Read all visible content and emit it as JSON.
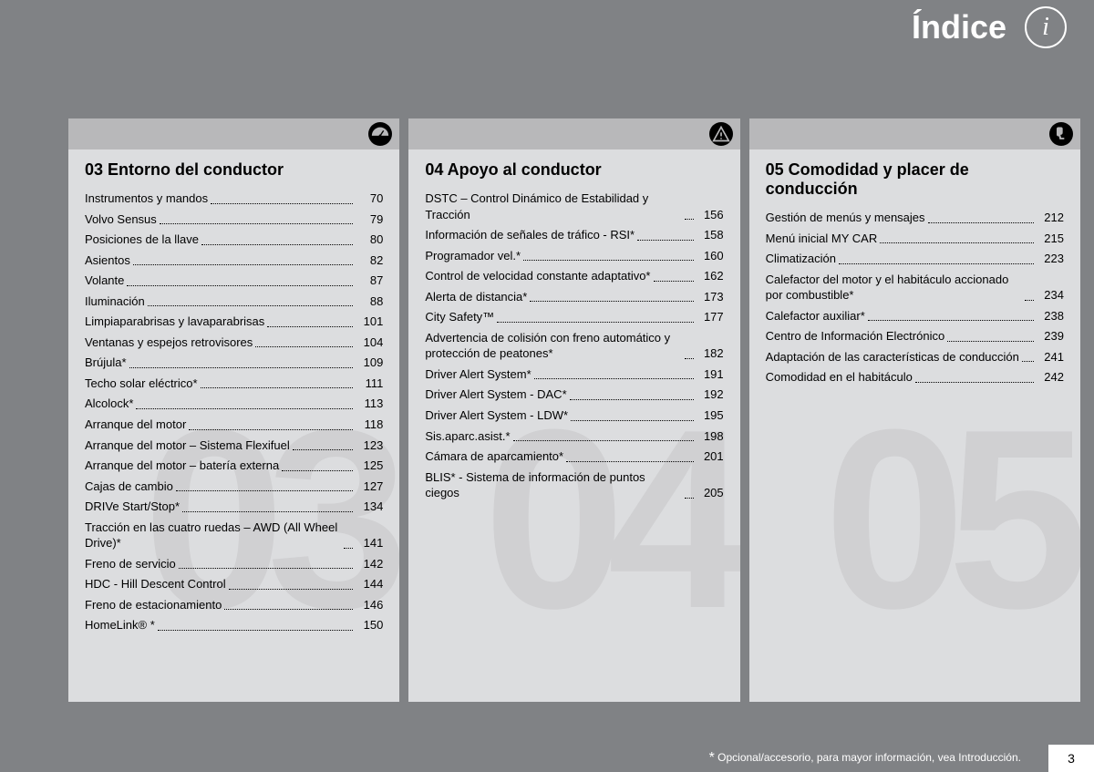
{
  "header": {
    "title": "Índice"
  },
  "pageNumber": "3",
  "footnote": "Opcional/accesorio, para mayor información, vea Introducción.",
  "columns": [
    {
      "bgNum": "03",
      "iconGlyph": "gauge",
      "title": "03 Entorno del conductor",
      "entries": [
        {
          "label": "Instrumentos y mandos",
          "page": "70"
        },
        {
          "label": "Volvo Sensus",
          "page": "79"
        },
        {
          "label": "Posiciones de la llave",
          "page": "80"
        },
        {
          "label": "Asientos",
          "page": "82"
        },
        {
          "label": "Volante",
          "page": "87"
        },
        {
          "label": "Iluminación",
          "page": "88"
        },
        {
          "label": "Limpiaparabrisas y lavaparabrisas",
          "page": "101"
        },
        {
          "label": "Ventanas y espejos retrovisores",
          "page": "104"
        },
        {
          "label": "Brújula*",
          "page": "109"
        },
        {
          "label": "Techo solar eléctrico*",
          "page": "111"
        },
        {
          "label": "Alcolock*",
          "page": "113"
        },
        {
          "label": "Arranque del motor",
          "page": "118"
        },
        {
          "label": "Arranque del motor – Sistema Flexifuel",
          "page": "123"
        },
        {
          "label": "Arranque del motor – batería externa",
          "page": "125"
        },
        {
          "label": "Cajas de cambio",
          "page": "127"
        },
        {
          "label": "DRIVe Start/Stop*",
          "page": "134"
        },
        {
          "label": "Tracción en las cuatro ruedas – AWD (All Wheel Drive)*",
          "page": "141"
        },
        {
          "label": "Freno de servicio",
          "page": "142"
        },
        {
          "label": "HDC - Hill Descent Control",
          "page": "144"
        },
        {
          "label": "Freno de estacionamiento",
          "page": "146"
        },
        {
          "label": "HomeLink® *",
          "page": "150"
        }
      ]
    },
    {
      "bgNum": "04",
      "iconGlyph": "warn",
      "title": "04 Apoyo al conductor",
      "entries": [
        {
          "label": "DSTC – Control Dinámico de Estabilidad y Tracción",
          "page": "156"
        },
        {
          "label": "Información de señales de tráfico - RSI*",
          "page": "158"
        },
        {
          "label": "Programador vel.*",
          "page": "160"
        },
        {
          "label": "Control de velocidad constante adaptativo*",
          "page": "162"
        },
        {
          "label": "Alerta de distancia*",
          "page": "173"
        },
        {
          "label": "City Safety™",
          "page": "177"
        },
        {
          "label": "Advertencia de colisión con freno automático y protección de peatones*",
          "page": "182"
        },
        {
          "label": "Driver Alert System*",
          "page": "191"
        },
        {
          "label": "Driver Alert System - DAC*",
          "page": "192"
        },
        {
          "label": "Driver Alert System - LDW*",
          "page": "195"
        },
        {
          "label": "Sis.aparc.asist.*",
          "page": "198"
        },
        {
          "label": "Cámara de aparcamiento*",
          "page": "201"
        },
        {
          "label": "BLIS* - Sistema de información de puntos ciegos",
          "page": "205"
        }
      ]
    },
    {
      "bgNum": "05",
      "iconGlyph": "seat",
      "title": "05 Comodidad y placer de conducción",
      "entries": [
        {
          "label": "Gestión de menús y mensajes",
          "page": "212"
        },
        {
          "label": "Menú inicial MY CAR",
          "page": "215"
        },
        {
          "label": "Climatización",
          "page": "223"
        },
        {
          "label": "Calefactor del motor y el habitáculo accionado por combustible*",
          "page": "234"
        },
        {
          "label": "Calefactor auxiliar*",
          "page": "238"
        },
        {
          "label": "Centro de Información Electrónico",
          "page": "239"
        },
        {
          "label": "Adaptación de las características de conducción",
          "page": "241"
        },
        {
          "label": "Comodidad en el habitáculo",
          "page": "242"
        }
      ]
    }
  ]
}
